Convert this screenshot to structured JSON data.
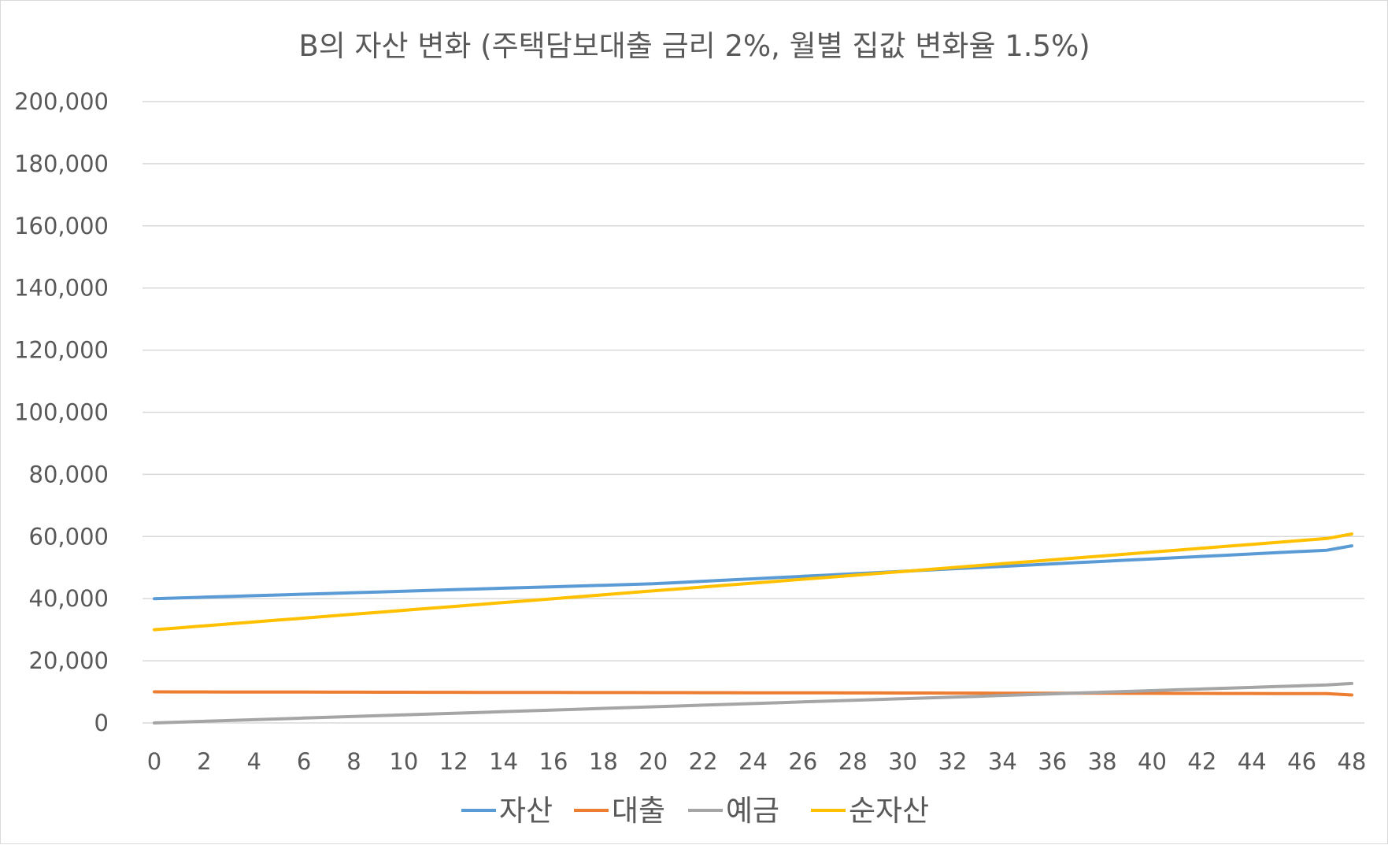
{
  "chart_data": {
    "type": "line",
    "title": "B의 자산 변화 (주택담보대출 금리 2%, 월별 집값 변화율 1.5%)",
    "xlabel": "",
    "ylabel": "",
    "x": [
      0,
      1,
      2,
      3,
      4,
      5,
      6,
      7,
      8,
      9,
      10,
      11,
      12,
      13,
      14,
      15,
      16,
      17,
      18,
      19,
      20,
      21,
      22,
      23,
      24,
      25,
      26,
      27,
      28,
      29,
      30,
      31,
      32,
      33,
      34,
      35,
      36,
      37,
      38,
      39,
      40,
      41,
      42,
      43,
      44,
      45,
      46,
      47,
      48
    ],
    "x_tick_labels": [
      "0",
      "2",
      "4",
      "6",
      "8",
      "10",
      "12",
      "14",
      "16",
      "18",
      "20",
      "22",
      "24",
      "26",
      "28",
      "30",
      "32",
      "34",
      "36",
      "38",
      "40",
      "42",
      "44",
      "46",
      "48"
    ],
    "ylim": [
      0,
      200000
    ],
    "y_tick_labels": [
      "0",
      "20,000",
      "40,000",
      "60,000",
      "80,000",
      "100,000",
      "120,000",
      "140,000",
      "160,000",
      "180,000",
      "200,000"
    ],
    "grid": true,
    "legend_position": "bottom",
    "series": [
      {
        "name": "자산",
        "color": "#5b9bd5",
        "values": [
          40000,
          40240,
          40480,
          40720,
          40960,
          41200,
          41440,
          41680,
          41920,
          42160,
          42400,
          42640,
          42880,
          43120,
          43360,
          43600,
          43840,
          44080,
          44320,
          44560,
          44800,
          45200,
          45600,
          46000,
          46400,
          46800,
          47200,
          47600,
          48000,
          48400,
          48800,
          49200,
          49600,
          50000,
          50400,
          50800,
          51200,
          51600,
          52000,
          52400,
          52800,
          53200,
          53600,
          54000,
          54400,
          54800,
          55200,
          55600,
          57000
        ]
      },
      {
        "name": "대출",
        "color": "#ed7d31",
        "values": [
          10000,
          9988,
          9976,
          9964,
          9952,
          9940,
          9928,
          9916,
          9904,
          9892,
          9880,
          9868,
          9856,
          9844,
          9832,
          9820,
          9808,
          9796,
          9784,
          9772,
          9760,
          9748,
          9736,
          9724,
          9712,
          9700,
          9688,
          9676,
          9664,
          9652,
          9640,
          9628,
          9616,
          9604,
          9592,
          9580,
          9568,
          9556,
          9544,
          9532,
          9520,
          9508,
          9496,
          9484,
          9472,
          9460,
          9448,
          9436,
          9000
        ]
      },
      {
        "name": "예금",
        "color": "#a5a5a5",
        "values": [
          0,
          260,
          520,
          780,
          1040,
          1300,
          1560,
          1820,
          2080,
          2340,
          2600,
          2860,
          3120,
          3380,
          3640,
          3900,
          4160,
          4420,
          4680,
          4940,
          5200,
          5460,
          5720,
          5980,
          6240,
          6500,
          6760,
          7020,
          7280,
          7540,
          7800,
          8060,
          8320,
          8580,
          8840,
          9100,
          9360,
          9620,
          9880,
          10140,
          10400,
          10660,
          10920,
          11180,
          11440,
          11700,
          11960,
          12220,
          12700
        ]
      },
      {
        "name": "순자산",
        "color": "#ffc000",
        "values": [
          30000,
          30625,
          31250,
          31875,
          32500,
          33125,
          33750,
          34375,
          35000,
          35625,
          36250,
          36875,
          37500,
          38125,
          38750,
          39375,
          40000,
          40625,
          41250,
          41875,
          42500,
          43125,
          43750,
          44375,
          45000,
          45625,
          46250,
          46875,
          47500,
          48125,
          48750,
          49375,
          50000,
          50625,
          51250,
          51875,
          52500,
          53125,
          53750,
          54375,
          55000,
          55625,
          56250,
          56875,
          57500,
          58125,
          58750,
          59375,
          60800
        ]
      }
    ]
  }
}
